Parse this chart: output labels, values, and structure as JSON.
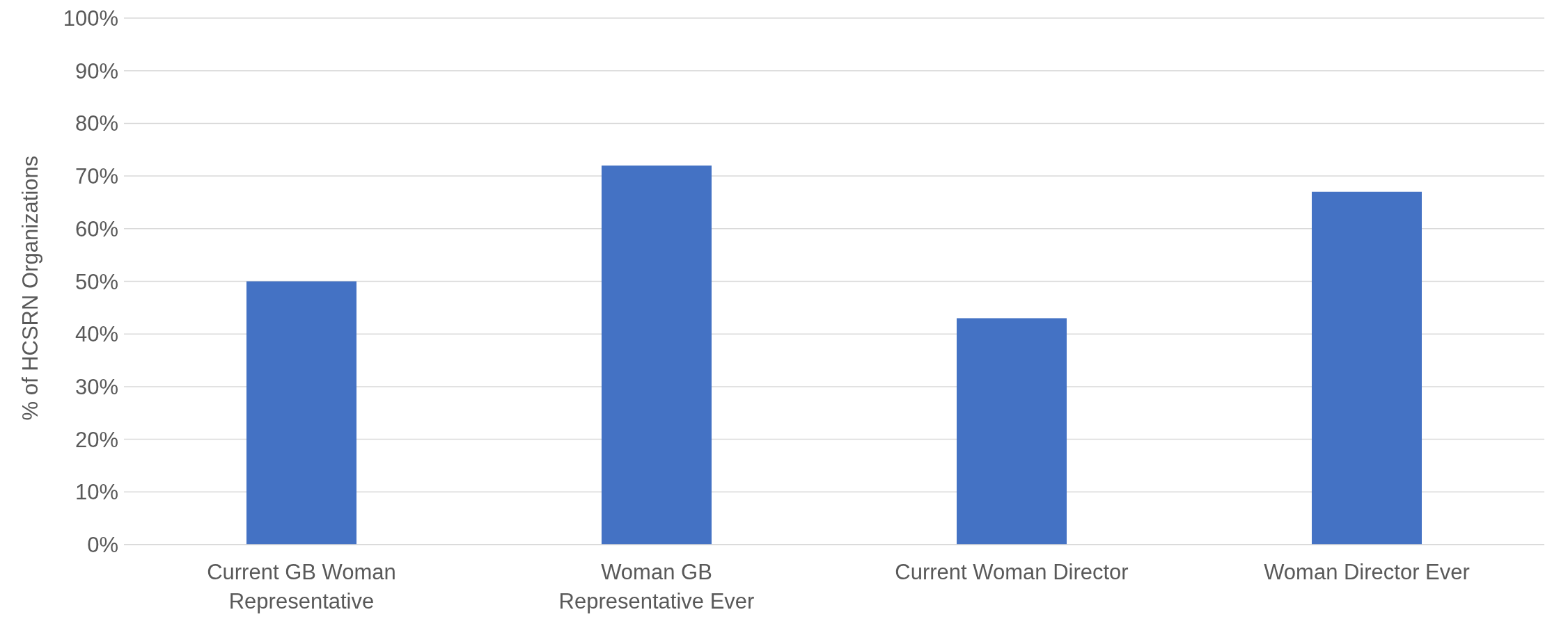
{
  "chart_data": {
    "type": "bar",
    "ylabel": "% of HCSRN Organizations",
    "categories": [
      "Current GB Woman Representative",
      "Woman GB Representative Ever",
      "Current Woman Director",
      "Woman Director Ever"
    ],
    "values": [
      50,
      72,
      43,
      67
    ],
    "color": "#4472c4",
    "ylim": [
      0,
      100
    ],
    "yticks": [
      {
        "value": 0,
        "label": "0%"
      },
      {
        "value": 10,
        "label": "10%"
      },
      {
        "value": 20,
        "label": "20%"
      },
      {
        "value": 30,
        "label": "30%"
      },
      {
        "value": 40,
        "label": "40%"
      },
      {
        "value": 50,
        "label": "50%"
      },
      {
        "value": 60,
        "label": "60%"
      },
      {
        "value": 70,
        "label": "70%"
      },
      {
        "value": 80,
        "label": "80%"
      },
      {
        "value": 90,
        "label": "90%"
      },
      {
        "value": 100,
        "label": "100%"
      }
    ],
    "grid": "y",
    "legend": false
  }
}
